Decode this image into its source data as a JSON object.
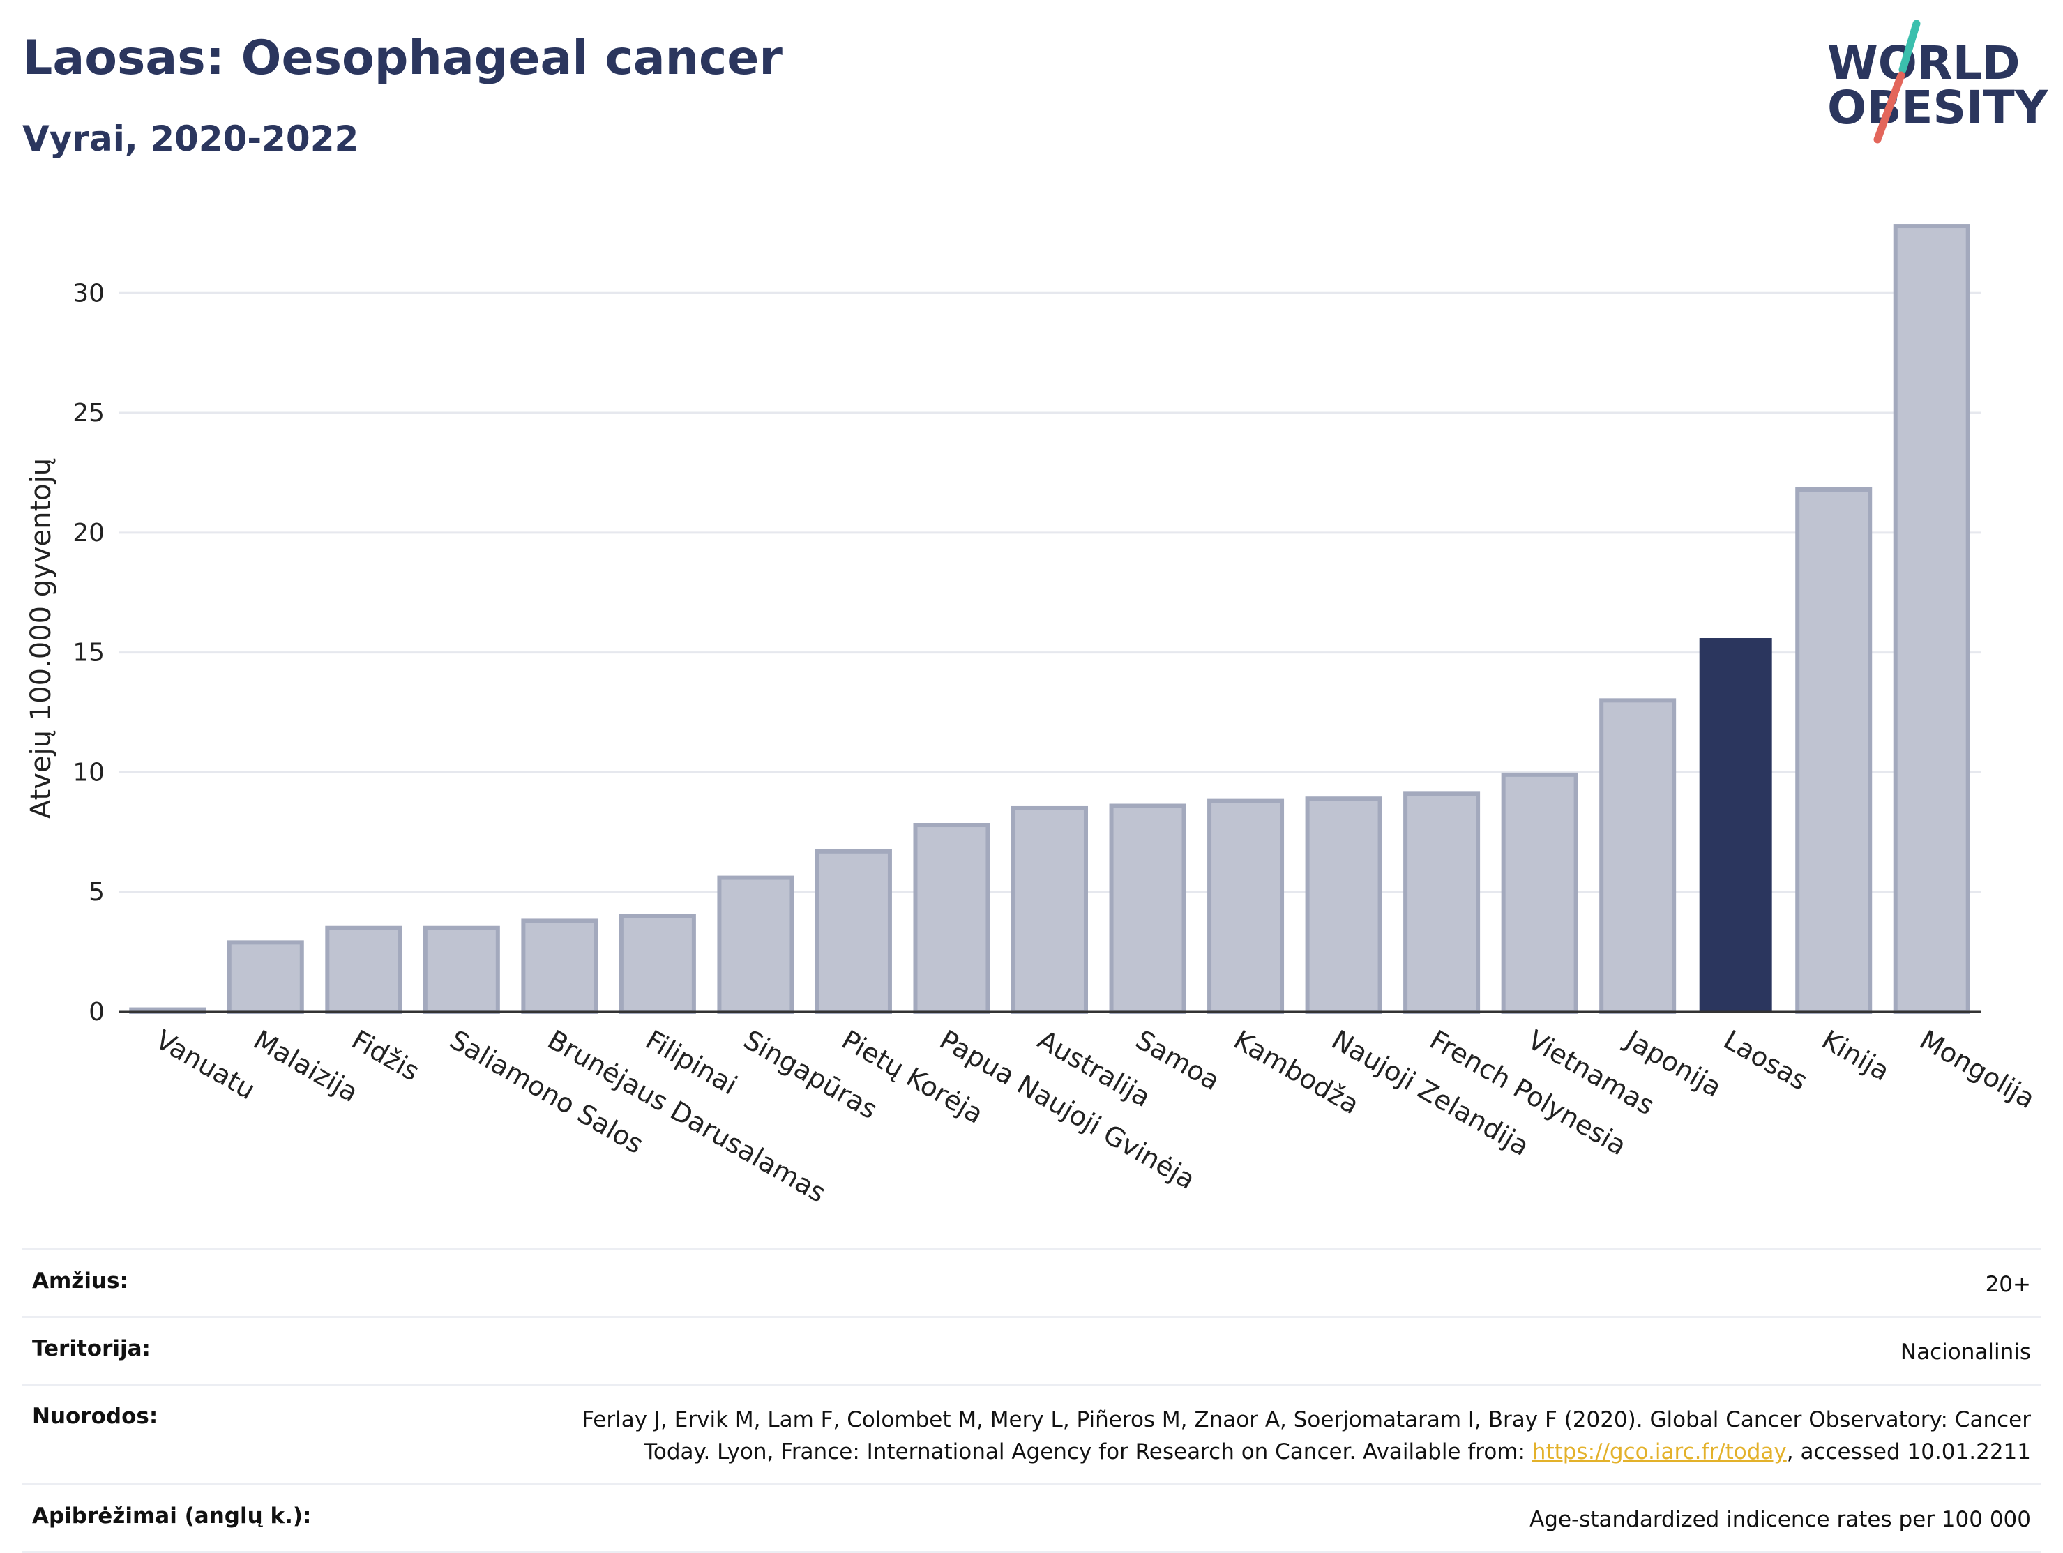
{
  "header": {
    "title": "Laosas: Oesophageal cancer",
    "subtitle": "Vyrai, 2020-2022"
  },
  "logo": {
    "line1": "WORLD",
    "line2": "OBESITY",
    "accent_colors": [
      "#3bbfad",
      "#e3665b"
    ]
  },
  "chart_data": {
    "type": "bar",
    "ylabel": "Atvejų 100.000 gyventojų",
    "xlabel": "",
    "ylim": [
      0,
      33.5
    ],
    "yticks": [
      0,
      5,
      10,
      15,
      20,
      25,
      30
    ],
    "grid": true,
    "categories": [
      "Vanuatu",
      "Malaizija",
      "Fidžis",
      "Saliamono Salos",
      "Brunėjaus Darusalamas",
      "Filipinai",
      "Singapūras",
      "Pietų Korėja",
      "Papua Naujoji Gvinėja",
      "Australija",
      "Samoa",
      "Kambodža",
      "Naujoji Zelandija",
      "French Polynesia",
      "Vietnamas",
      "Japonija",
      "Laosas",
      "Kinija",
      "Mongolija"
    ],
    "values": [
      0.1,
      2.9,
      3.5,
      3.5,
      3.8,
      4.0,
      5.6,
      6.7,
      7.8,
      8.5,
      8.6,
      8.8,
      8.9,
      9.1,
      9.9,
      13.0,
      15.6,
      21.8,
      32.8
    ],
    "highlight": "Laosas",
    "colors": {
      "bar": "#bfc3d1",
      "bar_edge": "#a3a9bd",
      "highlight": "#2b365e"
    }
  },
  "info": {
    "age_label": "Amžius:",
    "age_value": "20+",
    "territory_label": "Teritorija:",
    "territory_value": "Nacionalinis",
    "refs_label": "Nuorodos:",
    "refs_text_1": "Ferlay J, Ervik M, Lam F, Colombet M, Mery L, Piñeros M, Znaor A, Soerjomataram I, Bray F (2020). Global Cancer Observatory: Cancer Today. Lyon, France: International Agency for Research on Cancer. Available from: ",
    "refs_link": "https://gco.iarc.fr/today",
    "refs_text_2": ", accessed 10.01.2211",
    "defs_label": "Apibrėžimai (anglų k.):",
    "defs_value": "Age-standardized indicence rates per 100 000"
  }
}
